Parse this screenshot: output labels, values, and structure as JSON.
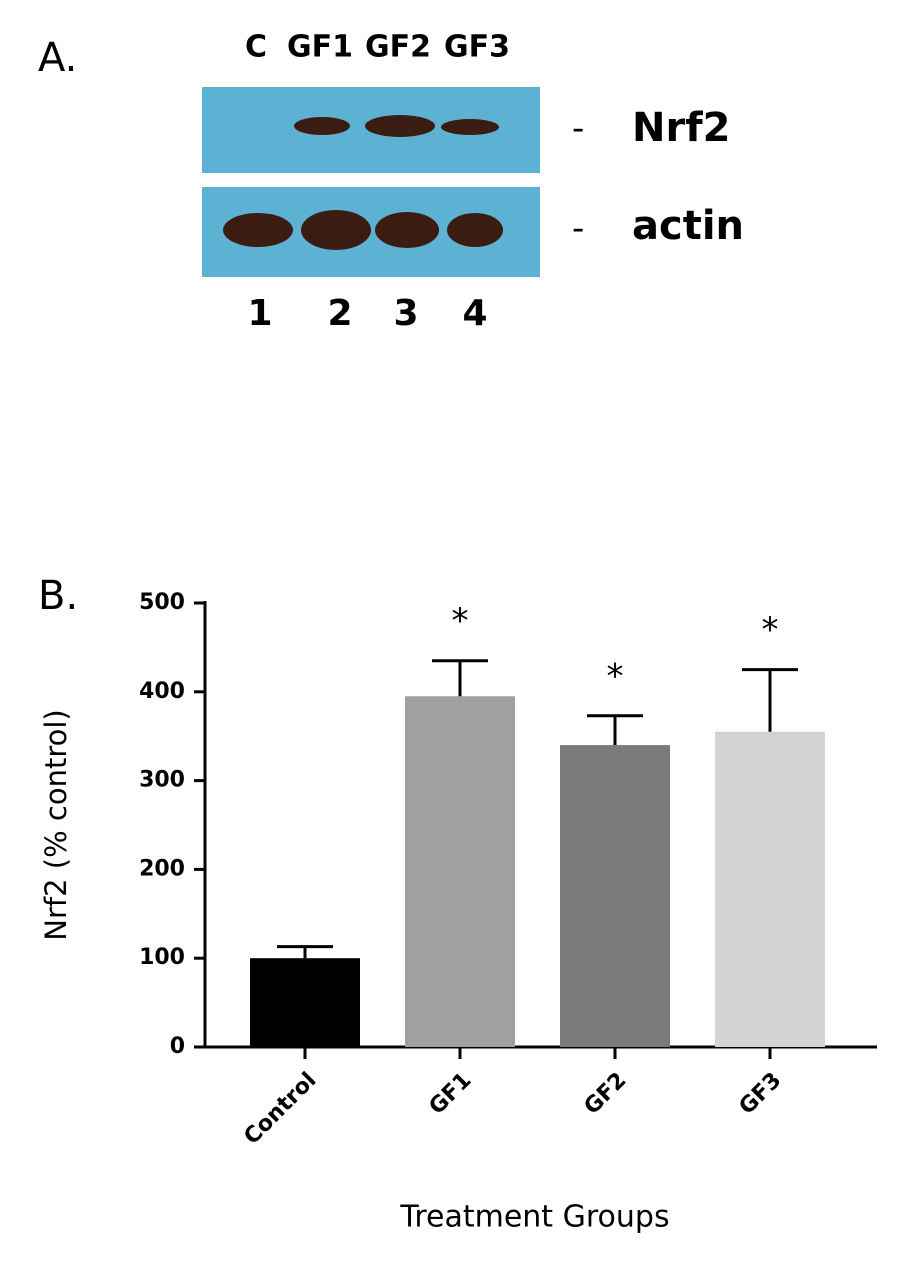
{
  "panel_a": {
    "label": "A.",
    "lanes": [
      "C",
      "GF1",
      "GF2",
      "GF3"
    ],
    "lane_numbers": [
      1,
      2,
      3,
      4
    ],
    "blots": [
      {
        "name": "Nrf2",
        "dash": "-"
      },
      {
        "name": "actin",
        "dash": "-"
      }
    ]
  },
  "chart_data": {
    "type": "bar",
    "panel_label": "B.",
    "ylabel": "Nrf2 (% control)",
    "xlabel": "Treatment Groups",
    "categories": [
      "Control",
      "GF1",
      "GF2",
      "GF3"
    ],
    "values": [
      100,
      395,
      340,
      355
    ],
    "errors": [
      13,
      40,
      33,
      70
    ],
    "colors": [
      "#000000",
      "#a0a0a0",
      "#7a7a7a",
      "#d3d3d3"
    ],
    "annotations": [
      null,
      "*",
      "*",
      "*"
    ],
    "ylim": [
      0,
      500
    ],
    "yticks": [
      0,
      100,
      200,
      300,
      400,
      500
    ]
  }
}
